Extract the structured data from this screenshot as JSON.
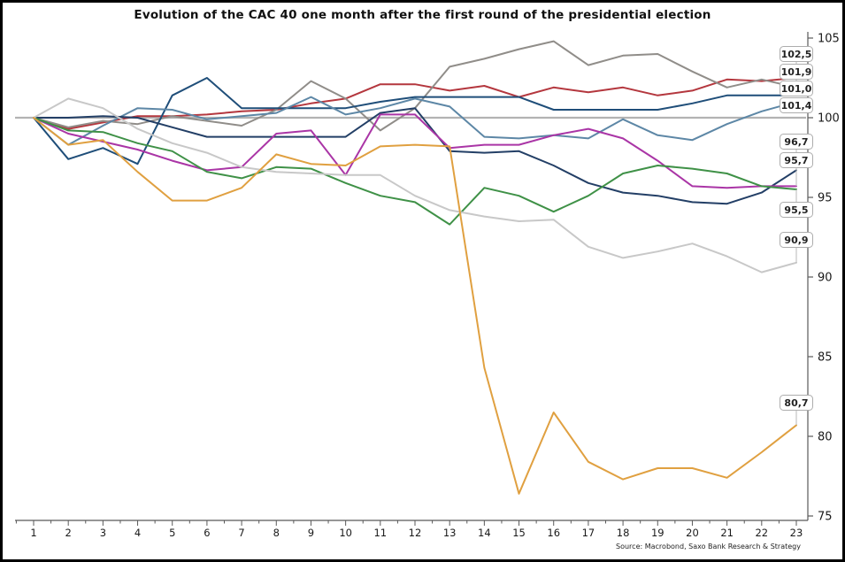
{
  "title": "Evolution of the CAC 40 one month after the first round of the presidential election",
  "source": "Source: Macrobond, Saxo Bank Research & Strategy",
  "chart_data": {
    "type": "line",
    "x": [
      1,
      2,
      3,
      4,
      5,
      6,
      7,
      8,
      9,
      10,
      11,
      12,
      13,
      14,
      15,
      16,
      17,
      18,
      19,
      20,
      21,
      22,
      23
    ],
    "xlabel": "",
    "ylabel": "",
    "ylim": [
      75,
      105
    ],
    "yticks": [
      105,
      100,
      95,
      90,
      85,
      80,
      75
    ],
    "baseline_value": 100,
    "baseline_color": "#b3b3b3",
    "axis_color": "#595959",
    "grid": false,
    "legend_position": "none",
    "end_label_boxes": [
      "102,5",
      "101,9",
      "101,0",
      "101,4",
      "96,7",
      "95,7",
      "95,5",
      "90,9",
      "80,7"
    ],
    "series": [
      {
        "name": "red",
        "color": "#b4373e",
        "values": [
          100,
          99.3,
          99.7,
          100.1,
          100.1,
          100.2,
          100.4,
          100.5,
          100.9,
          101.2,
          102.1,
          102.1,
          101.7,
          102.0,
          101.3,
          101.9,
          101.6,
          101.9,
          101.4,
          101.7,
          102.4,
          102.3,
          102.5
        ]
      },
      {
        "name": "slate-gray",
        "color": "#908d89",
        "values": [
          100,
          99.4,
          99.8,
          99.6,
          100.1,
          99.8,
          99.5,
          100.5,
          102.3,
          101.2,
          99.2,
          100.6,
          103.2,
          103.7,
          104.3,
          104.8,
          103.3,
          103.9,
          104.0,
          102.9,
          101.9,
          102.4,
          101.9
        ]
      },
      {
        "name": "dark-navy",
        "color": "#1f4e79",
        "values": [
          100,
          97.4,
          98.1,
          97.1,
          101.4,
          102.5,
          100.6,
          100.6,
          100.6,
          100.6,
          101.0,
          101.3,
          101.3,
          101.3,
          101.3,
          100.5,
          100.5,
          100.5,
          100.5,
          100.9,
          101.4,
          101.4,
          101.4
        ]
      },
      {
        "name": "steel-blue",
        "color": "#5d87a6",
        "values": [
          100,
          98.3,
          99.5,
          100.6,
          100.5,
          99.9,
          100.1,
          100.3,
          101.3,
          100.2,
          100.6,
          101.2,
          100.7,
          98.8,
          98.7,
          98.9,
          98.7,
          99.9,
          98.9,
          98.6,
          99.6,
          100.4,
          101.0
        ]
      },
      {
        "name": "navy-2",
        "color": "#233f66",
        "values": [
          100,
          100.0,
          100.1,
          100.0,
          99.4,
          98.8,
          98.8,
          98.8,
          98.8,
          98.8,
          100.3,
          100.6,
          97.9,
          97.8,
          97.9,
          97.0,
          95.9,
          95.3,
          95.1,
          94.7,
          94.6,
          95.3,
          96.7
        ]
      },
      {
        "name": "magenta",
        "color": "#aa35a6",
        "values": [
          100,
          99.0,
          98.5,
          98.0,
          97.3,
          96.7,
          96.9,
          99.0,
          99.2,
          96.4,
          100.2,
          100.2,
          98.1,
          98.3,
          98.3,
          98.9,
          99.3,
          98.7,
          97.3,
          95.7,
          95.6,
          95.7,
          95.7
        ]
      },
      {
        "name": "green",
        "color": "#3f9147",
        "values": [
          100,
          99.2,
          99.1,
          98.4,
          97.9,
          96.6,
          96.2,
          96.9,
          96.8,
          95.9,
          95.1,
          94.7,
          93.3,
          95.6,
          95.1,
          94.1,
          95.1,
          96.5,
          97.0,
          96.8,
          96.5,
          95.7,
          95.5
        ]
      },
      {
        "name": "light-gray",
        "color": "#c8c8c8",
        "values": [
          100,
          101.2,
          100.6,
          99.3,
          98.4,
          97.8,
          96.9,
          96.6,
          96.5,
          96.4,
          96.4,
          95.1,
          94.2,
          93.8,
          93.5,
          93.6,
          91.9,
          91.2,
          91.6,
          92.1,
          91.3,
          90.3,
          90.9
        ]
      },
      {
        "name": "orange",
        "color": "#e0a040",
        "values": [
          100,
          98.3,
          98.6,
          96.6,
          94.8,
          94.8,
          95.6,
          97.7,
          97.1,
          97.0,
          98.2,
          98.3,
          98.2,
          84.3,
          76.4,
          81.5,
          78.4,
          77.3,
          78.0,
          78.0,
          77.4,
          79.0,
          80.7
        ]
      }
    ]
  }
}
